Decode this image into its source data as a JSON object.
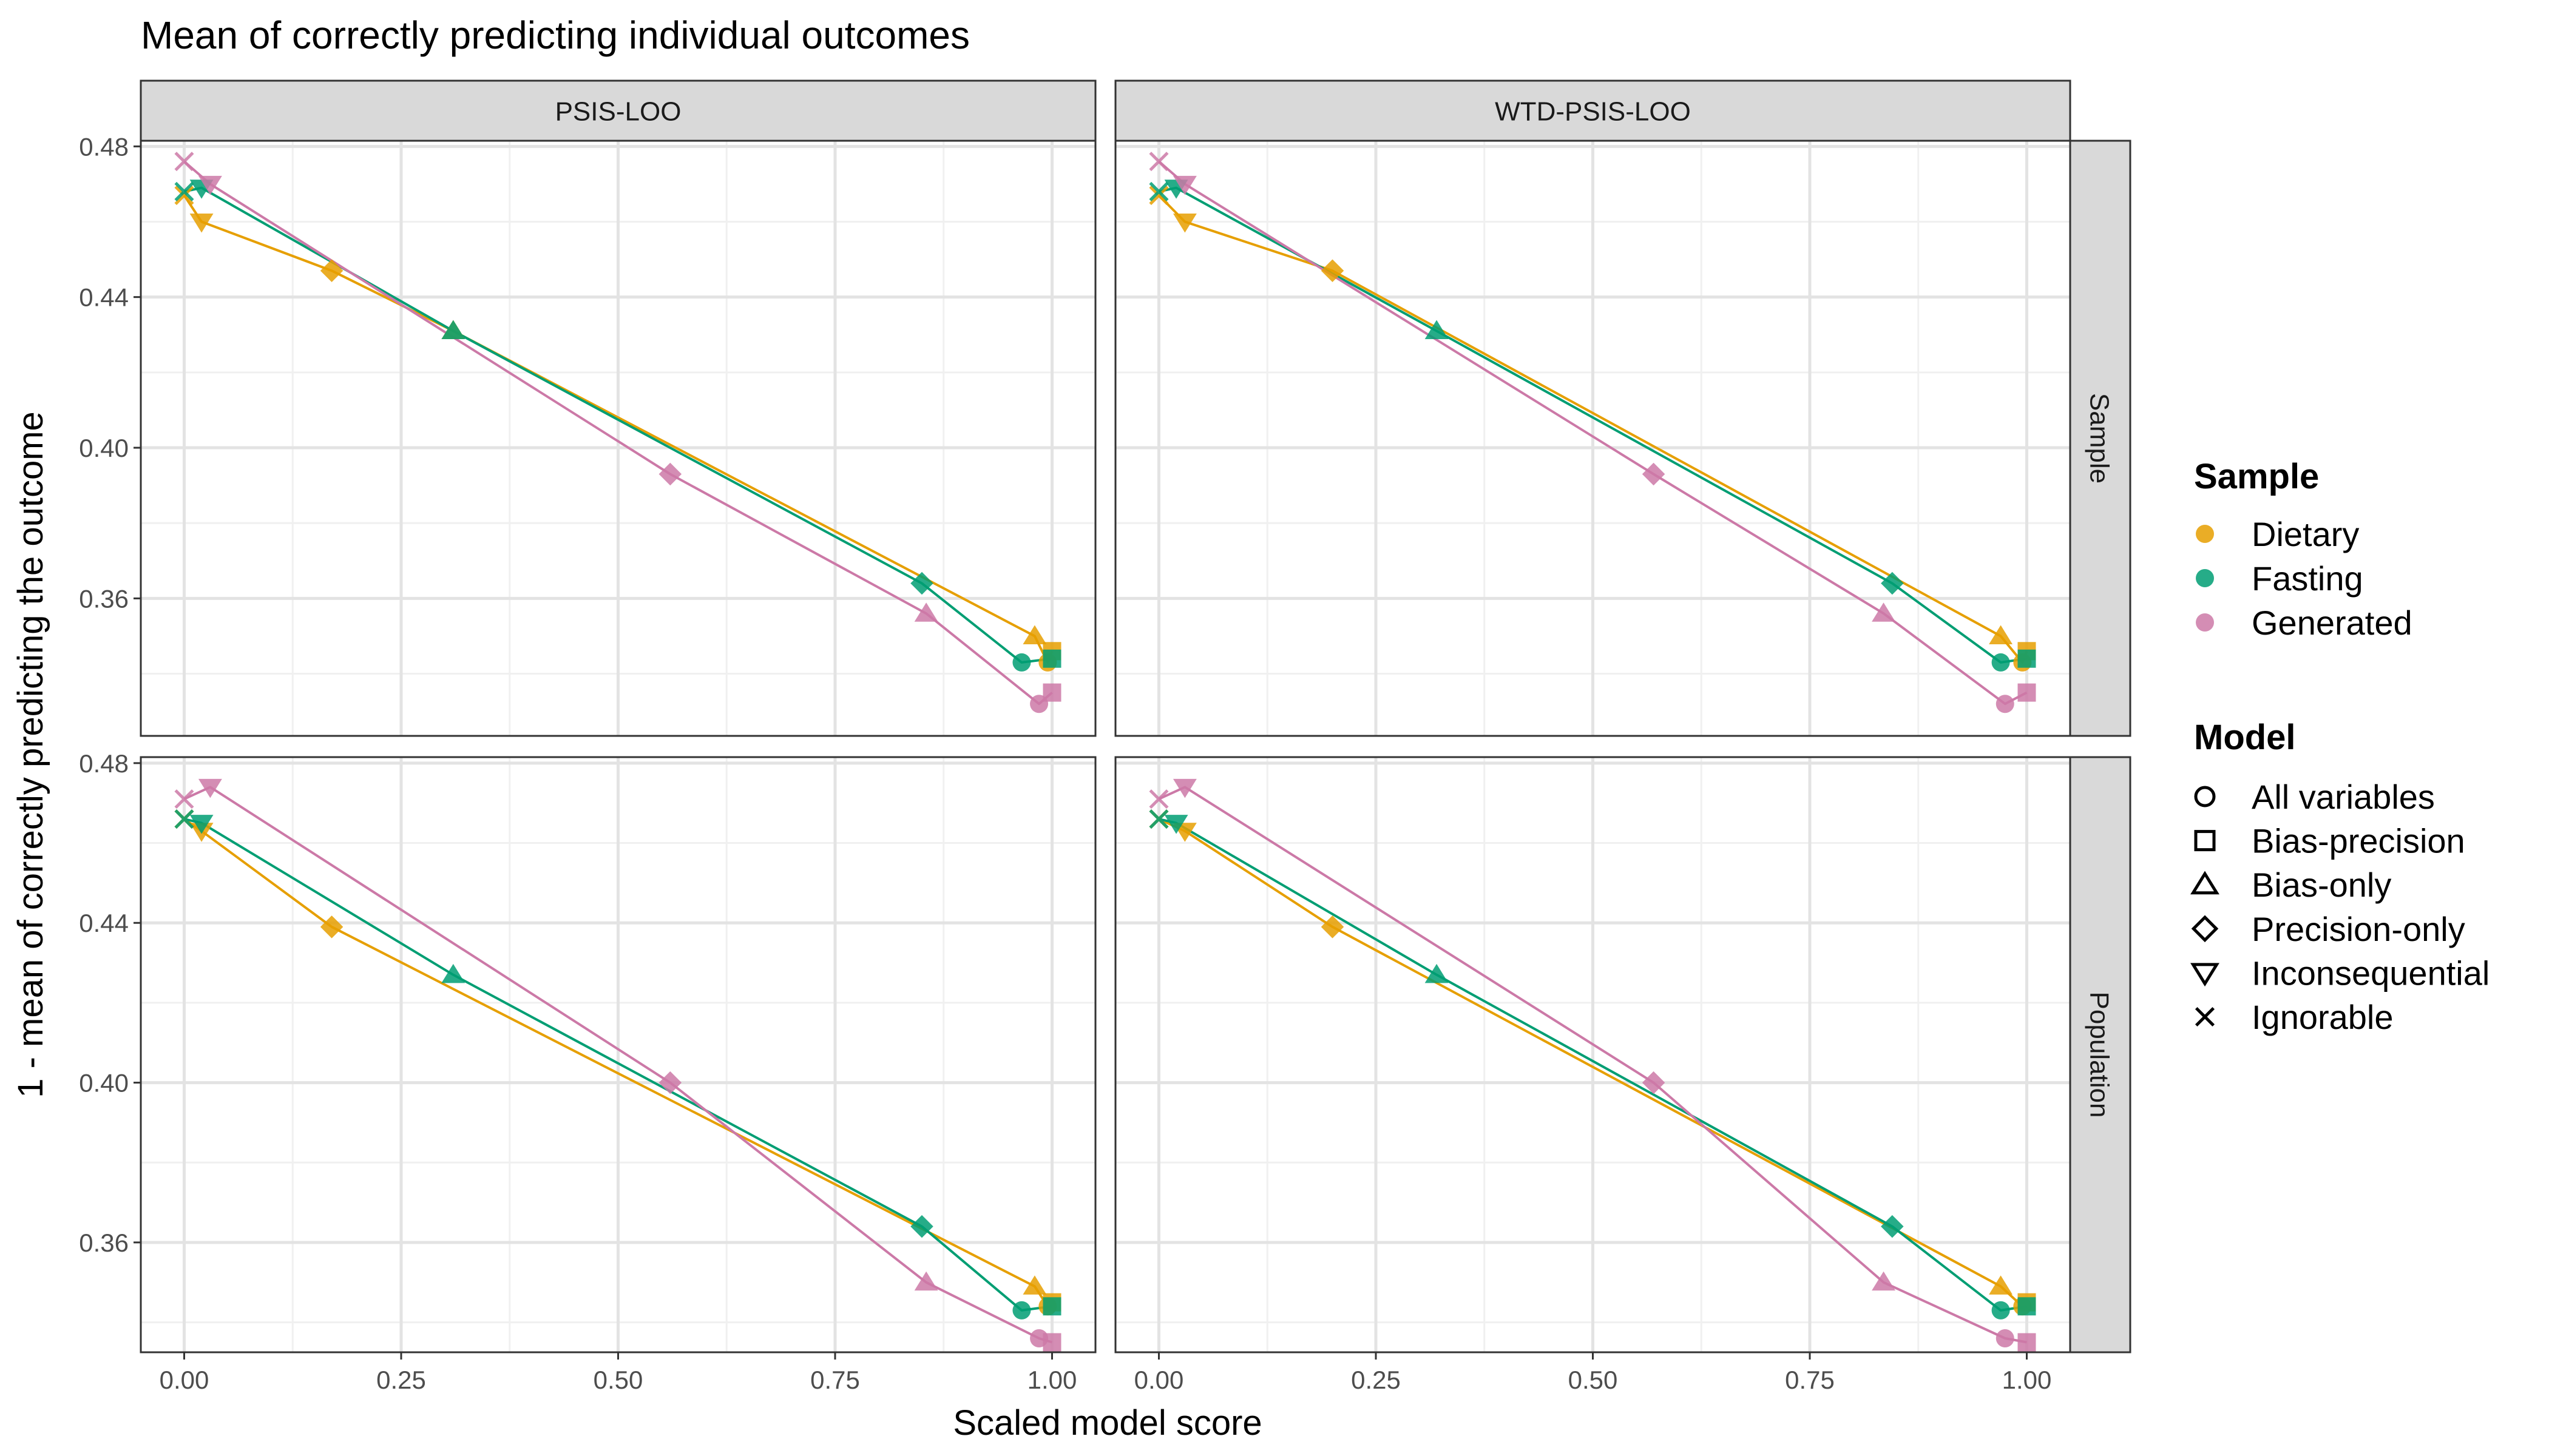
{
  "chart_data": {
    "type": "scatter",
    "title": "Mean of correctly predicting individual outcomes",
    "xlabel": "Scaled model score",
    "ylabel": "1 - mean of correctly predicting the outcome",
    "xlim": [
      -0.05,
      1.05
    ],
    "x_ticks": [
      0,
      0.25,
      0.5,
      0.75,
      1
    ],
    "x_tick_labels": [
      "0.00",
      "0.25",
      "0.50",
      "0.75",
      "1.00"
    ],
    "grid": true,
    "legend_position": "right",
    "column_facets": [
      "PSIS-LOO",
      "WTD-PSIS-LOO"
    ],
    "row_facets": [
      "Sample",
      "Population"
    ],
    "row_scales": [
      {
        "ylim": [
          0.3235,
          0.4815
        ],
        "y_ticks": [
          0.36,
          0.4,
          0.44,
          0.48
        ],
        "y_tick_labels": [
          "0.36",
          "0.40",
          "0.44",
          "0.48"
        ]
      },
      {
        "ylim": [
          0.3325,
          0.4815
        ],
        "y_ticks": [
          0.36,
          0.4,
          0.44,
          0.48
        ],
        "y_tick_labels": [
          "0.36",
          "0.40",
          "0.44",
          "0.48"
        ]
      }
    ],
    "colors": {
      "Dietary": "#E69F00",
      "Fasting": "#009E73",
      "Generated": "#CC79A7"
    },
    "legend": {
      "sample_title": "Sample",
      "sample_entries": [
        "Dietary",
        "Fasting",
        "Generated"
      ],
      "model_title": "Model",
      "model_entries": [
        "All variables",
        "Bias-precision",
        "Bias-only",
        "Precision-only",
        "Inconsequential",
        "Ignorable"
      ]
    },
    "model_shapes": {
      "All variables": "circle",
      "Bias-precision": "square",
      "Bias-only": "triangle",
      "Precision-only": "diamond",
      "Inconsequential": "triangle-down",
      "Ignorable": "cross"
    },
    "panels": [
      {
        "col": 0,
        "row": 0,
        "series": [
          {
            "name": "Dietary",
            "points": [
              {
                "model": "Ignorable",
                "x": 0.0,
                "y": 0.467
              },
              {
                "model": "Inconsequential",
                "x": 0.02,
                "y": 0.46
              },
              {
                "model": "Precision-only",
                "x": 0.17,
                "y": 0.447
              },
              {
                "model": "Bias-only",
                "x": 0.31,
                "y": 0.431
              },
              {
                "model": "Bias-only",
                "x": 0.98,
                "y": 0.35
              },
              {
                "model": "Bias-precision",
                "x": 1.0,
                "y": 0.346
              },
              {
                "model": "All variables",
                "x": 0.995,
                "y": 0.343
              }
            ]
          },
          {
            "name": "Fasting",
            "points": [
              {
                "model": "Ignorable",
                "x": 0.0,
                "y": 0.468
              },
              {
                "model": "Inconsequential",
                "x": 0.02,
                "y": 0.469
              },
              {
                "model": "Bias-only",
                "x": 0.31,
                "y": 0.431
              },
              {
                "model": "Precision-only",
                "x": 0.85,
                "y": 0.364
              },
              {
                "model": "All variables",
                "x": 0.965,
                "y": 0.343
              },
              {
                "model": "Bias-precision",
                "x": 1.0,
                "y": 0.344
              }
            ]
          },
          {
            "name": "Generated",
            "points": [
              {
                "model": "Ignorable",
                "x": 0.0,
                "y": 0.476
              },
              {
                "model": "Inconsequential",
                "x": 0.03,
                "y": 0.47
              },
              {
                "model": "Precision-only",
                "x": 0.56,
                "y": 0.393
              },
              {
                "model": "Bias-only",
                "x": 0.855,
                "y": 0.356
              },
              {
                "model": "All variables",
                "x": 0.985,
                "y": 0.332
              },
              {
                "model": "Bias-precision",
                "x": 1.0,
                "y": 0.335
              }
            ]
          }
        ]
      },
      {
        "col": 1,
        "row": 0,
        "series": [
          {
            "name": "Dietary",
            "points": [
              {
                "model": "Ignorable",
                "x": 0.0,
                "y": 0.467
              },
              {
                "model": "Inconsequential",
                "x": 0.03,
                "y": 0.46
              },
              {
                "model": "Precision-only",
                "x": 0.2,
                "y": 0.447
              },
              {
                "model": "Bias-only",
                "x": 0.97,
                "y": 0.35
              },
              {
                "model": "Bias-precision",
                "x": 1.0,
                "y": 0.346
              },
              {
                "model": "All variables",
                "x": 0.995,
                "y": 0.343
              }
            ]
          },
          {
            "name": "Fasting",
            "points": [
              {
                "model": "Ignorable",
                "x": 0.0,
                "y": 0.468
              },
              {
                "model": "Inconsequential",
                "x": 0.02,
                "y": 0.469
              },
              {
                "model": "Bias-only",
                "x": 0.32,
                "y": 0.431
              },
              {
                "model": "Precision-only",
                "x": 0.845,
                "y": 0.364
              },
              {
                "model": "All variables",
                "x": 0.97,
                "y": 0.343
              },
              {
                "model": "Bias-precision",
                "x": 1.0,
                "y": 0.344
              }
            ]
          },
          {
            "name": "Generated",
            "points": [
              {
                "model": "Ignorable",
                "x": 0.0,
                "y": 0.476
              },
              {
                "model": "Inconsequential",
                "x": 0.03,
                "y": 0.47
              },
              {
                "model": "Precision-only",
                "x": 0.57,
                "y": 0.393
              },
              {
                "model": "Bias-only",
                "x": 0.835,
                "y": 0.356
              },
              {
                "model": "All variables",
                "x": 0.975,
                "y": 0.332
              },
              {
                "model": "Bias-precision",
                "x": 1.0,
                "y": 0.335
              }
            ]
          }
        ]
      },
      {
        "col": 0,
        "row": 1,
        "series": [
          {
            "name": "Dietary",
            "points": [
              {
                "model": "Ignorable",
                "x": 0.0,
                "y": 0.466
              },
              {
                "model": "Inconsequential",
                "x": 0.02,
                "y": 0.463
              },
              {
                "model": "Precision-only",
                "x": 0.17,
                "y": 0.439
              },
              {
                "model": "Bias-only",
                "x": 0.98,
                "y": 0.349
              },
              {
                "model": "Bias-precision",
                "x": 1.0,
                "y": 0.345
              },
              {
                "model": "All variables",
                "x": 0.995,
                "y": 0.344
              }
            ]
          },
          {
            "name": "Fasting",
            "points": [
              {
                "model": "Ignorable",
                "x": 0.0,
                "y": 0.466
              },
              {
                "model": "Inconsequential",
                "x": 0.02,
                "y": 0.465
              },
              {
                "model": "Bias-only",
                "x": 0.31,
                "y": 0.427
              },
              {
                "model": "Precision-only",
                "x": 0.85,
                "y": 0.364
              },
              {
                "model": "All variables",
                "x": 0.965,
                "y": 0.343
              },
              {
                "model": "Bias-precision",
                "x": 1.0,
                "y": 0.344
              }
            ]
          },
          {
            "name": "Generated",
            "points": [
              {
                "model": "Ignorable",
                "x": 0.0,
                "y": 0.471
              },
              {
                "model": "Inconsequential",
                "x": 0.03,
                "y": 0.474
              },
              {
                "model": "Precision-only",
                "x": 0.56,
                "y": 0.4
              },
              {
                "model": "Bias-only",
                "x": 0.855,
                "y": 0.35
              },
              {
                "model": "All variables",
                "x": 0.985,
                "y": 0.336
              },
              {
                "model": "Bias-precision",
                "x": 1.0,
                "y": 0.335
              }
            ]
          }
        ]
      },
      {
        "col": 1,
        "row": 1,
        "series": [
          {
            "name": "Dietary",
            "points": [
              {
                "model": "Ignorable",
                "x": 0.0,
                "y": 0.466
              },
              {
                "model": "Inconsequential",
                "x": 0.03,
                "y": 0.463
              },
              {
                "model": "Precision-only",
                "x": 0.2,
                "y": 0.439
              },
              {
                "model": "Bias-only",
                "x": 0.97,
                "y": 0.349
              },
              {
                "model": "Bias-precision",
                "x": 1.0,
                "y": 0.345
              },
              {
                "model": "All variables",
                "x": 0.995,
                "y": 0.344
              }
            ]
          },
          {
            "name": "Fasting",
            "points": [
              {
                "model": "Ignorable",
                "x": 0.0,
                "y": 0.466
              },
              {
                "model": "Inconsequential",
                "x": 0.02,
                "y": 0.465
              },
              {
                "model": "Bias-only",
                "x": 0.32,
                "y": 0.427
              },
              {
                "model": "Precision-only",
                "x": 0.845,
                "y": 0.364
              },
              {
                "model": "All variables",
                "x": 0.97,
                "y": 0.343
              },
              {
                "model": "Bias-precision",
                "x": 1.0,
                "y": 0.344
              }
            ]
          },
          {
            "name": "Generated",
            "points": [
              {
                "model": "Ignorable",
                "x": 0.0,
                "y": 0.471
              },
              {
                "model": "Inconsequential",
                "x": 0.03,
                "y": 0.474
              },
              {
                "model": "Precision-only",
                "x": 0.57,
                "y": 0.4
              },
              {
                "model": "Bias-only",
                "x": 0.835,
                "y": 0.35
              },
              {
                "model": "All variables",
                "x": 0.975,
                "y": 0.336
              },
              {
                "model": "Bias-precision",
                "x": 1.0,
                "y": 0.335
              }
            ]
          }
        ]
      }
    ]
  }
}
